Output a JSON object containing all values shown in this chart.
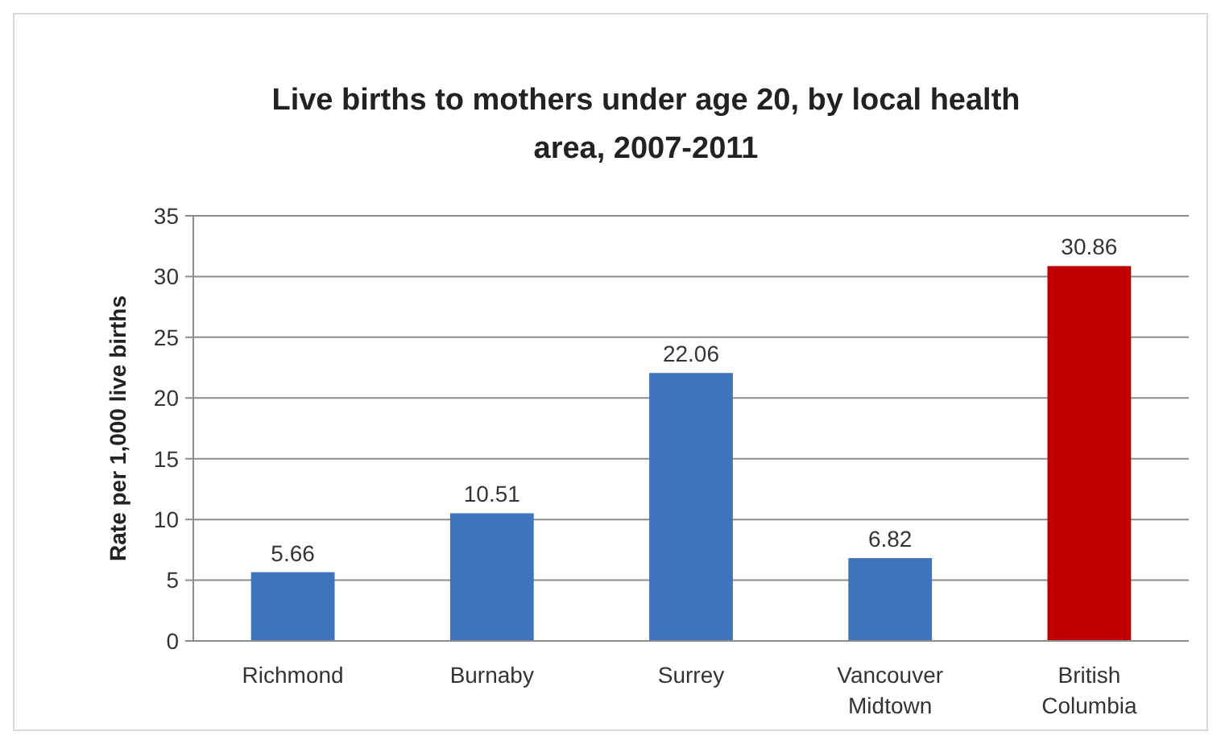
{
  "chart_data": {
    "type": "bar",
    "title": "Live births to mothers under age 20, by local health area, 2007-2011",
    "ylabel": "Rate per 1,000 live births",
    "categories": [
      "Richmond",
      "Burnaby",
      "Surrey",
      "Vancouver Midtown",
      "British Columbia"
    ],
    "values": [
      5.66,
      10.51,
      22.06,
      6.82,
      30.86
    ],
    "colors": [
      "#3f73bb",
      "#3f73bb",
      "#3f73bb",
      "#3f73bb",
      "#c00000"
    ],
    "ylim": [
      0,
      35
    ],
    "yticks": [
      0,
      5,
      10,
      15,
      20,
      25,
      30,
      35
    ],
    "grid": "y",
    "data_labels": true
  }
}
